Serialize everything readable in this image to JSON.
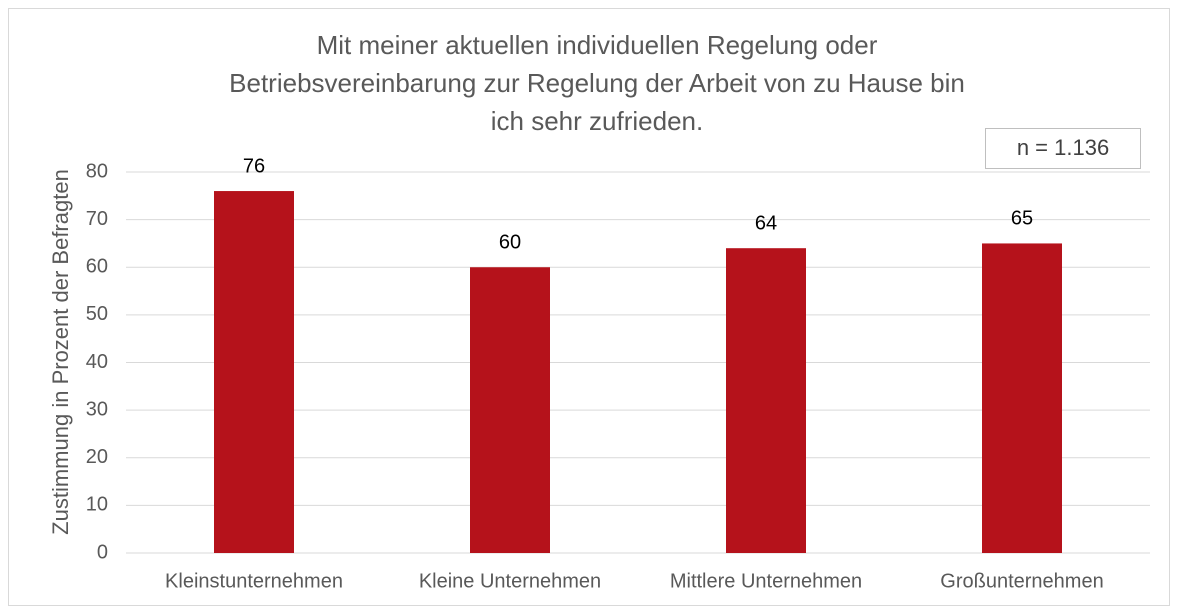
{
  "chart_data": {
    "type": "bar",
    "title": [
      "Mit meiner aktuellen individuellen Regelung oder",
      "Betriebsvereinbarung zur Regelung der Arbeit von zu Hause bin",
      "ich sehr zufrieden."
    ],
    "annotation": "n = 1.136",
    "y_label": "Zustimmung in Prozent der Befragten",
    "categories": [
      "Kleinstunternehmen",
      "Kleine Unternehmen",
      "Mittlere Unternehmen",
      "Großunternehmen"
    ],
    "values": [
      76,
      60,
      64,
      65
    ],
    "color": "#b5121b",
    "ylim": [
      0,
      80
    ],
    "yticks": [
      0,
      10,
      20,
      30,
      40,
      50,
      60,
      70,
      80
    ],
    "grid": true
  }
}
